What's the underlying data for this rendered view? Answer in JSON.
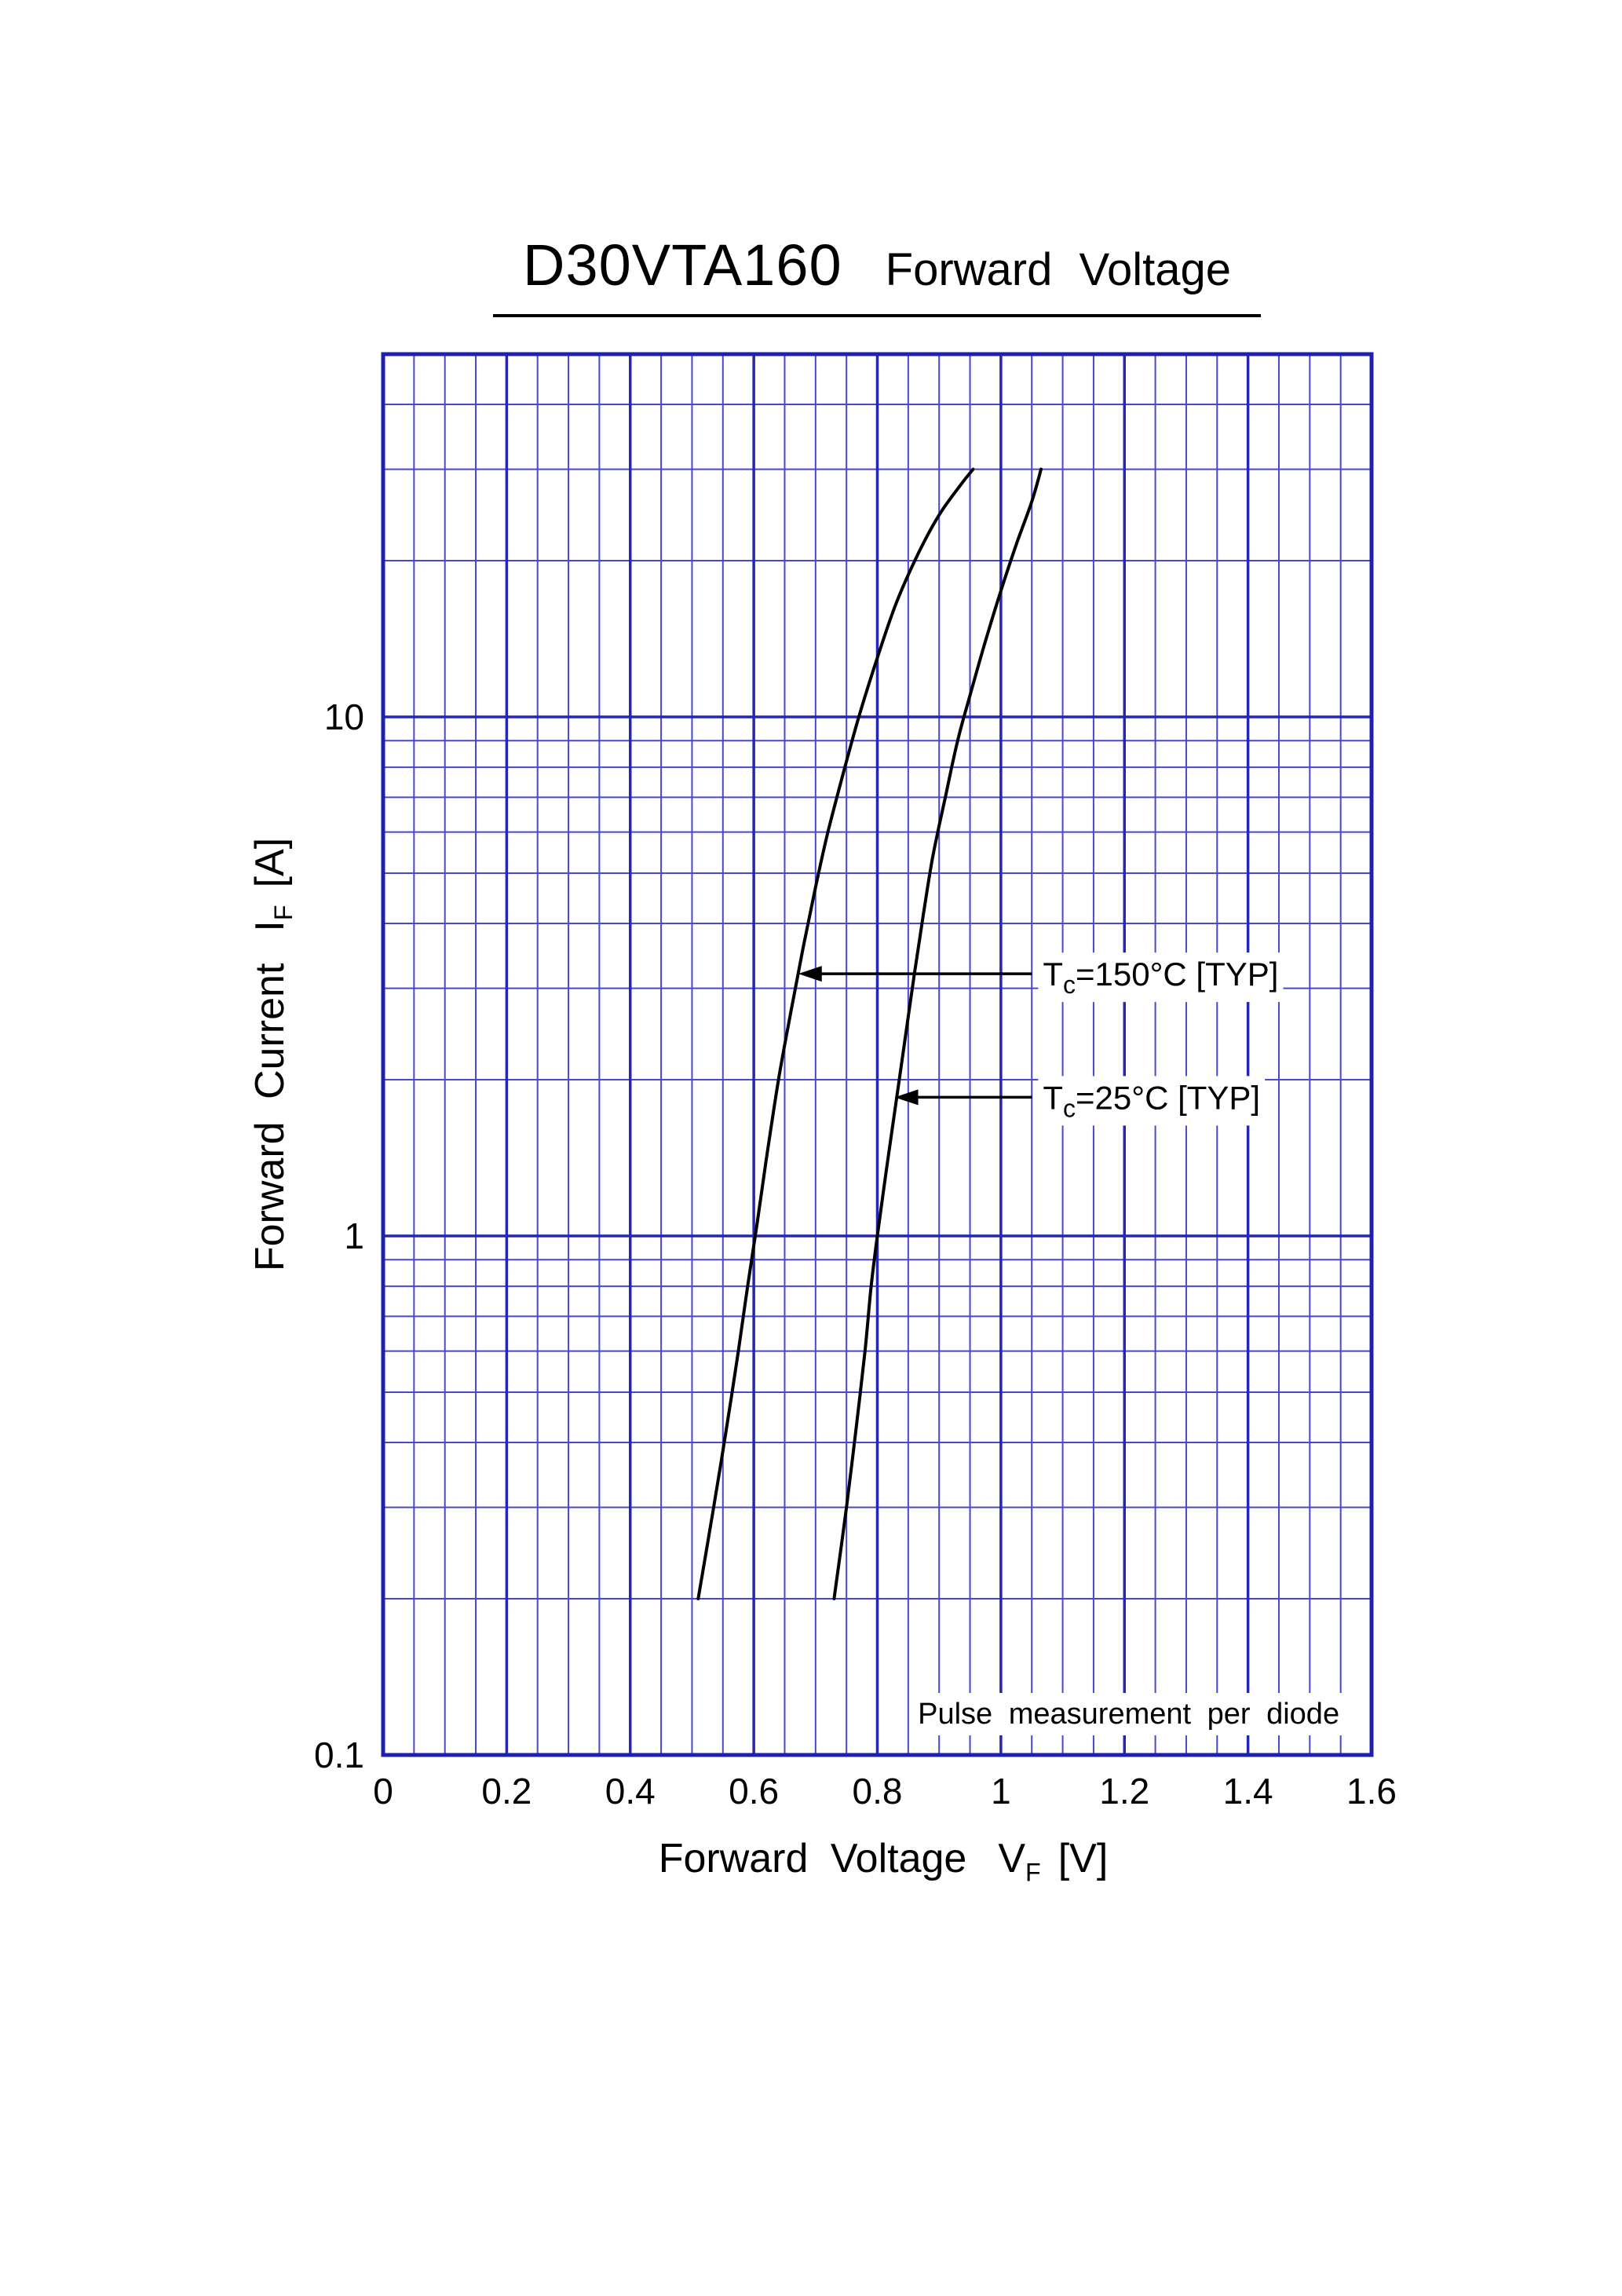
{
  "title": {
    "model": "D30VTA160",
    "name": "Forward Voltage"
  },
  "axis_labels": {
    "y": {
      "text": "Forward Current",
      "sym": "I",
      "sub": "F",
      "unit": "[A]"
    },
    "x": {
      "text": "Forward Voltage",
      "sym": "V",
      "sub": "F",
      "unit": "[V]"
    }
  },
  "colors": {
    "grid_minor": "#4747cf",
    "grid_major": "#2626b6",
    "frame": "#2020ae",
    "curve": "#000000",
    "text": "#000000",
    "background": "#ffffff"
  },
  "chart_data": {
    "type": "line",
    "title": "D30VTA160 Forward Voltage",
    "xlabel": "Forward Voltage VF [V]",
    "ylabel": "Forward Current IF [A]",
    "xlim": [
      0,
      1.6
    ],
    "ylim": [
      0.1,
      50
    ],
    "ylog": true,
    "grid": true,
    "x_major_step": 0.2,
    "x_minor_step": 0.05,
    "x_tick_values": [
      0,
      0.2,
      0.4,
      0.6,
      0.8,
      1,
      1.2,
      1.4,
      1.6
    ],
    "x_tick_labels": [
      "0",
      "0.2",
      "0.4",
      "0.6",
      "0.8",
      "1",
      "1.2",
      "1.4",
      "1.6"
    ],
    "y_tick_values": [
      0.1,
      1,
      10
    ],
    "y_tick_labels": [
      "0.1",
      "1",
      "10"
    ],
    "note": "Pulse measurement per diode",
    "series": [
      {
        "name": "Tc=150°C [TYP]",
        "points": [
          [
            0.51,
            0.2
          ],
          [
            0.535,
            0.3
          ],
          [
            0.555,
            0.42
          ],
          [
            0.575,
            0.6
          ],
          [
            0.59,
            0.8
          ],
          [
            0.605,
            1.05
          ],
          [
            0.62,
            1.4
          ],
          [
            0.64,
            2.0
          ],
          [
            0.66,
            2.7
          ],
          [
            0.68,
            3.6
          ],
          [
            0.7,
            4.7
          ],
          [
            0.72,
            6.0
          ],
          [
            0.745,
            7.8
          ],
          [
            0.77,
            10
          ],
          [
            0.8,
            13
          ],
          [
            0.83,
            16.5
          ],
          [
            0.865,
            20.5
          ],
          [
            0.9,
            24.5
          ],
          [
            0.935,
            28
          ],
          [
            0.955,
            30
          ]
        ]
      },
      {
        "name": "Tc=25°C [TYP]",
        "points": [
          [
            0.73,
            0.2
          ],
          [
            0.75,
            0.3
          ],
          [
            0.765,
            0.42
          ],
          [
            0.78,
            0.6
          ],
          [
            0.79,
            0.8
          ],
          [
            0.8,
            1.0
          ],
          [
            0.815,
            1.35
          ],
          [
            0.83,
            1.8
          ],
          [
            0.845,
            2.4
          ],
          [
            0.86,
            3.2
          ],
          [
            0.875,
            4.2
          ],
          [
            0.89,
            5.4
          ],
          [
            0.91,
            7.0
          ],
          [
            0.93,
            9.0
          ],
          [
            0.95,
            11
          ],
          [
            0.975,
            14
          ],
          [
            1.0,
            17.5
          ],
          [
            1.025,
            21.5
          ],
          [
            1.05,
            26
          ],
          [
            1.065,
            30
          ]
        ]
      }
    ],
    "annotations": [
      {
        "pre": "T",
        "sub": "c",
        "post": "=150°C [TYP]",
        "text_vf": 1.068,
        "target_vf": 0.672,
        "target_if": 3.2
      },
      {
        "pre": "T",
        "sub": "c",
        "post": "=25°C [TYP]",
        "text_vf": 1.068,
        "target_vf": 0.828,
        "target_if": 1.85
      }
    ]
  }
}
